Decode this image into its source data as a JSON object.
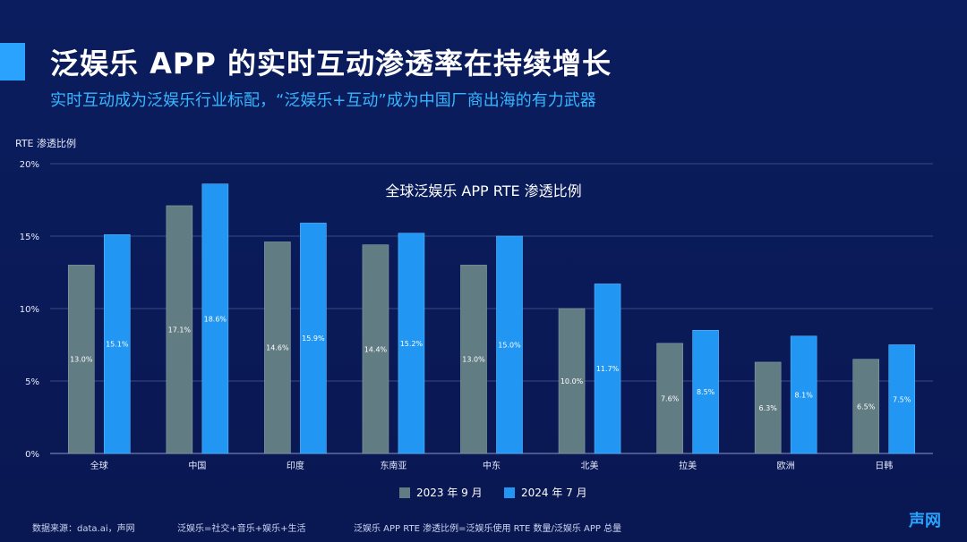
{
  "header": {
    "title": "泛娱乐 APP 的实时互动渗透率在持续增长",
    "subtitle": "实时互动成为泛娱乐行业标配，“泛娱乐+互动”成为中国厂商出海的有力武器"
  },
  "chart_data": {
    "type": "bar",
    "title": "全球泛娱乐 APP RTE 渗透比例",
    "ylabel": "RTE 渗透比例",
    "xlabel": "",
    "ylim": [
      0,
      20
    ],
    "yticks": [
      "0%",
      "5%",
      "10%",
      "15%",
      "20%"
    ],
    "grid": true,
    "legend_position": "bottom-center",
    "categories": [
      "全球",
      "中国",
      "印度",
      "东南亚",
      "中东",
      "北美",
      "拉美",
      "欧洲",
      "日韩"
    ],
    "series": [
      {
        "name": "2023 年 9 月",
        "color": "#627c83",
        "values": [
          13.0,
          17.1,
          14.6,
          14.4,
          13.0,
          10.0,
          7.6,
          6.3,
          6.5
        ],
        "labels": [
          "13.0%",
          "17.1%",
          "14.6%",
          "14.4%",
          "13.0%",
          "10.0%",
          "7.6%",
          "6.3%",
          "6.5%"
        ]
      },
      {
        "name": "2024 年 7 月",
        "color": "#2196f3",
        "values": [
          15.1,
          18.6,
          15.9,
          15.2,
          15.0,
          11.7,
          8.5,
          8.1,
          7.5
        ],
        "labels": [
          "15.1%",
          "18.6%",
          "15.9%",
          "15.2%",
          "15.0%",
          "11.7%",
          "8.5%",
          "8.1%",
          "7.5%"
        ]
      }
    ]
  },
  "footer": {
    "source": "数据来源：data.ai，声网",
    "note1": "泛娱乐=社交+音乐+娱乐+生活",
    "note2": "泛娱乐 APP RTE 渗透比例=泛娱乐使用 RTE 数量/泛娱乐 APP 总量",
    "logo": "声网"
  }
}
